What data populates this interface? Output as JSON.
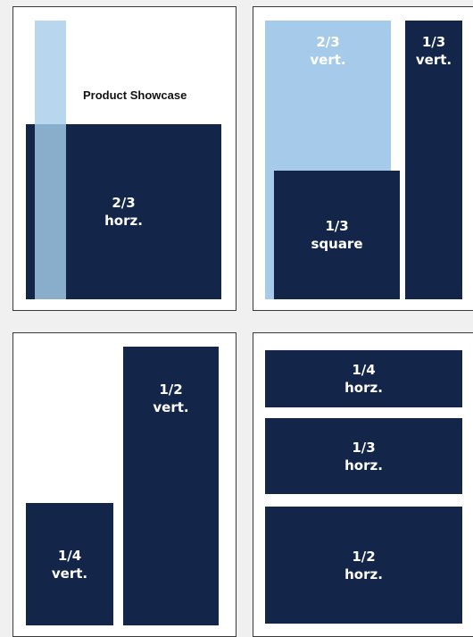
{
  "colors": {
    "background": "#f0f0f0",
    "page": "#ffffff",
    "dark_block": "#13264a",
    "light_block": "#a6cbea",
    "overlap_block": "#88aecb"
  },
  "layouts": [
    {
      "title": "Product Showcase",
      "blocks": [
        {
          "line1": "2/3",
          "line2": "horz."
        }
      ]
    },
    {
      "blocks": [
        {
          "line1": "2/3",
          "line2": "vert."
        },
        {
          "line1": "1/3",
          "line2": "vert."
        },
        {
          "line1": "1/3",
          "line2": "square"
        }
      ]
    },
    {
      "blocks": [
        {
          "line1": "1/2",
          "line2": "vert."
        },
        {
          "line1": "1/4",
          "line2": "vert."
        }
      ]
    },
    {
      "blocks": [
        {
          "line1": "1/4",
          "line2": "horz."
        },
        {
          "line1": "1/3",
          "line2": "horz."
        },
        {
          "line1": "1/2",
          "line2": "horz."
        }
      ]
    }
  ]
}
